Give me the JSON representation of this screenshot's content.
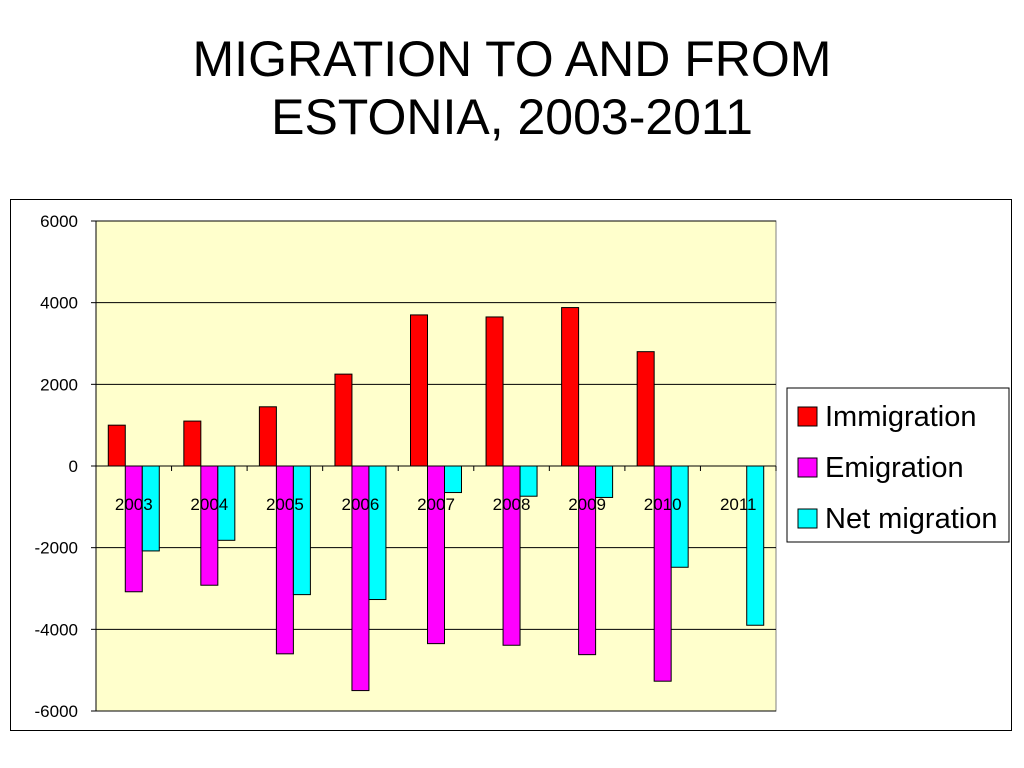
{
  "title_lines": [
    "MIGRATION TO AND FROM",
    "ESTONIA, 2003-2011"
  ],
  "chart_data": {
    "type": "bar",
    "categories": [
      "2003",
      "2004",
      "2005",
      "2006",
      "2007",
      "2008",
      "2009",
      "2010",
      "2011"
    ],
    "series": [
      {
        "name": "Immigration",
        "color": "#ff0000",
        "values": [
          1000,
          1100,
          1450,
          2250,
          3700,
          3650,
          3880,
          2800,
          null
        ]
      },
      {
        "name": "Emigration",
        "color": "#ff00ff",
        "values": [
          -3080,
          -2920,
          -4600,
          -5500,
          -4350,
          -4390,
          -4620,
          -5270,
          null
        ]
      },
      {
        "name": "Net migration",
        "color": "#00ffff",
        "values": [
          -2080,
          -1820,
          -3150,
          -3270,
          -650,
          -740,
          -770,
          -2480,
          -3900
        ]
      }
    ],
    "ylim": [
      -6000,
      6000
    ],
    "yticks": [
      6000,
      4000,
      2000,
      0,
      -2000,
      -4000,
      -6000
    ],
    "grid": true,
    "plot_background": "#ffffcc",
    "legend_position": "right"
  }
}
